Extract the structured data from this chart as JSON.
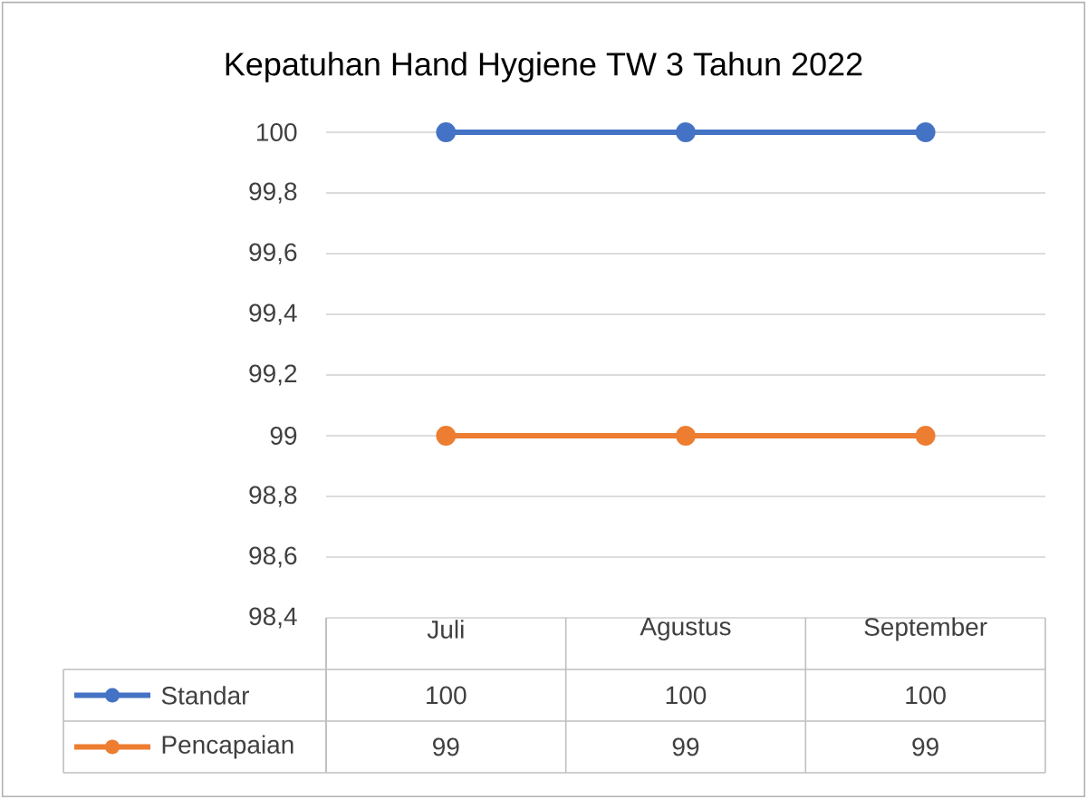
{
  "chart_data": {
    "type": "line",
    "title": "Kepatuhan Hand Hygiene TW 3 Tahun 2022",
    "categories": [
      "Juli",
      "Agustus",
      "September"
    ],
    "series": [
      {
        "name": "Standar",
        "color": "#4472c4",
        "values": [
          100,
          100,
          100
        ]
      },
      {
        "name": "Pencapaian",
        "color": "#ed7d31",
        "values": [
          99,
          99,
          99
        ]
      }
    ],
    "ylim": [
      98.4,
      100
    ],
    "yticks": [
      {
        "value": 98.4,
        "label": "98,4"
      },
      {
        "value": 98.6,
        "label": "98,6"
      },
      {
        "value": 98.8,
        "label": "98,8"
      },
      99,
      {
        "value": 99.2,
        "label": "99,2"
      },
      {
        "value": 99.4,
        "label": "99,4"
      },
      {
        "value": 99.6,
        "label": "99,6"
      },
      {
        "value": 99.8,
        "label": "99,8"
      },
      100
    ],
    "grid": "y",
    "marker": "circle",
    "line_style": "solid",
    "legend": "bottom",
    "data_labels": true
  }
}
